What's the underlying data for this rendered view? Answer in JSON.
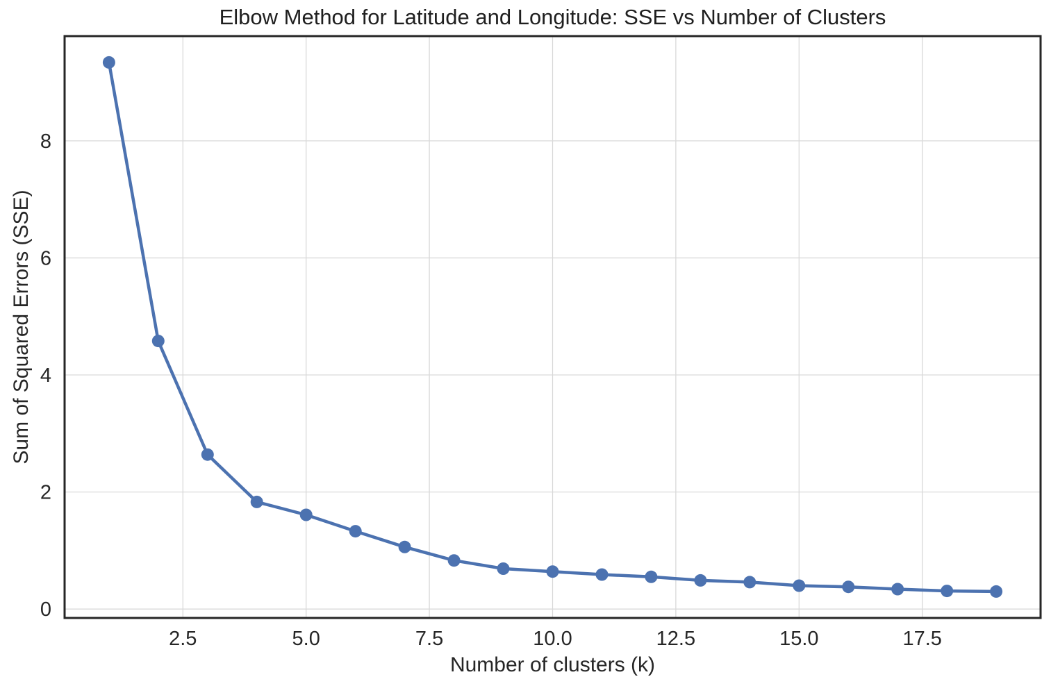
{
  "chart_data": {
    "type": "line",
    "title": "Elbow Method for Latitude and Longitude: SSE vs Number of Clusters",
    "xlabel": "Number of clusters (k)",
    "ylabel": "Sum of Squared Errors (SSE)",
    "x": [
      1,
      2,
      3,
      4,
      5,
      6,
      7,
      8,
      9,
      10,
      11,
      12,
      13,
      14,
      15,
      16,
      17,
      18,
      19
    ],
    "y": [
      9.34,
      4.58,
      2.64,
      1.83,
      1.61,
      1.33,
      1.06,
      0.83,
      0.69,
      0.64,
      0.59,
      0.55,
      0.49,
      0.46,
      0.4,
      0.38,
      0.34,
      0.31,
      0.3
    ],
    "xlim": [
      0.1,
      19.9
    ],
    "ylim": [
      -0.152,
      9.79
    ],
    "xticks": {
      "values": [
        2.5,
        5,
        7.5,
        10,
        12.5,
        15,
        17.5
      ],
      "labels": [
        "2.5",
        "5.0",
        "7.5",
        "10.0",
        "12.5",
        "15.0",
        "17.5"
      ]
    },
    "yticks": {
      "values": [
        0,
        2,
        4,
        6,
        8
      ],
      "labels": [
        "0",
        "2",
        "4",
        "6",
        "8"
      ]
    },
    "grid": true,
    "legend": "none",
    "marker": "circle",
    "colors": {
      "series": "#4C72B0",
      "grid": "#D9D9D9",
      "spine": "#262626",
      "text": "#262626",
      "background": "#FFFFFF"
    }
  }
}
